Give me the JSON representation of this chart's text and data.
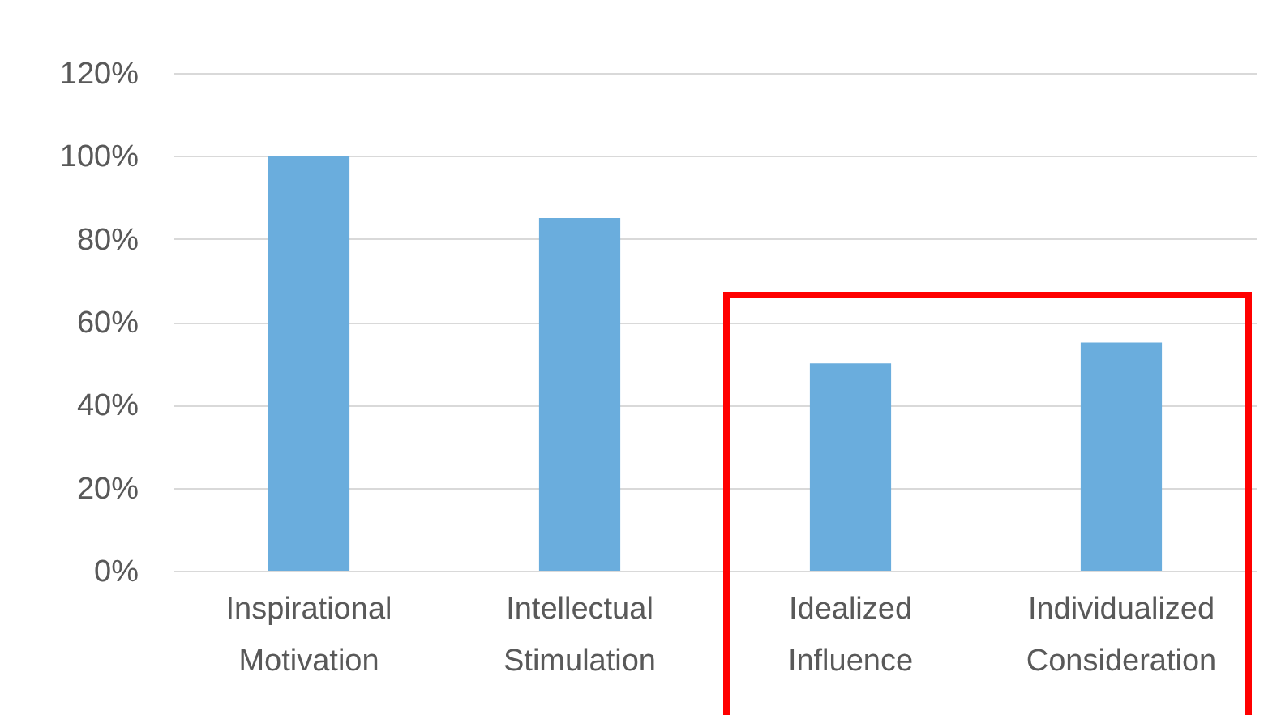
{
  "chart_data": {
    "type": "bar",
    "categories": [
      "Inspirational Motivation",
      "Intellectual Stimulation",
      "Idealized Influence",
      "Individualized Consideration"
    ],
    "values": [
      100,
      85,
      50,
      55
    ],
    "color": "#6aaddd",
    "ylim": [
      0,
      120
    ],
    "yticks": [
      {
        "value": 0,
        "label": "0%"
      },
      {
        "value": 20,
        "label": "20%"
      },
      {
        "value": 40,
        "label": "40%"
      },
      {
        "value": 60,
        "label": "60%"
      },
      {
        "value": 80,
        "label": "80%"
      },
      {
        "value": 100,
        "label": "100%"
      },
      {
        "value": 120,
        "label": "120%"
      }
    ],
    "grid": "y"
  }
}
